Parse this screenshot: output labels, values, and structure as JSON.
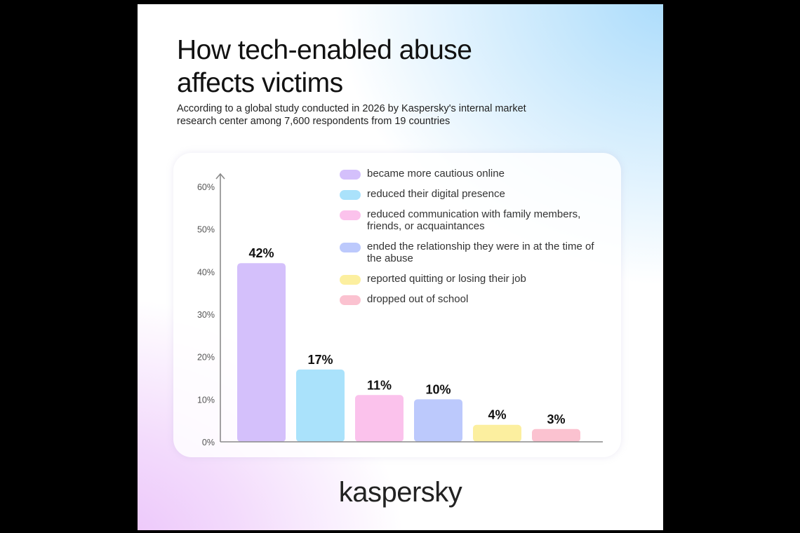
{
  "poster": {
    "title_line1": "How tech-enabled abuse",
    "title_line2": "affects victims",
    "subtitle": "According to a global study conducted in 2026 by Kaspersky's internal market research center among 7,600 respondents from 19 countries",
    "logo": "kaspersky"
  },
  "chart_data": {
    "type": "bar",
    "title": "How tech-enabled abuse affects victims",
    "categories": [
      "became more cautious online",
      "reduced their digital presence",
      "reduced communication with family members, friends, or acquaintances",
      "ended the relationship they were in at the time of the abuse",
      "reported quitting or losing their job",
      "dropped out of school"
    ],
    "values": [
      42,
      17,
      11,
      10,
      4,
      3
    ],
    "value_labels": [
      "42%",
      "17%",
      "11%",
      "10%",
      "4%",
      "3%"
    ],
    "colors": [
      "#d4c0fb",
      "#aae2fb",
      "#fbc2ec",
      "#bcc9fc",
      "#fcef9f",
      "#fbc2d0"
    ],
    "yticks": [
      0,
      10,
      20,
      30,
      40,
      50,
      60
    ],
    "ytick_labels": [
      "0%",
      "10%",
      "20%",
      "30%",
      "40%",
      "50%",
      "60%"
    ],
    "ylim": [
      0,
      60
    ],
    "legend": "top-right",
    "grid": false
  }
}
